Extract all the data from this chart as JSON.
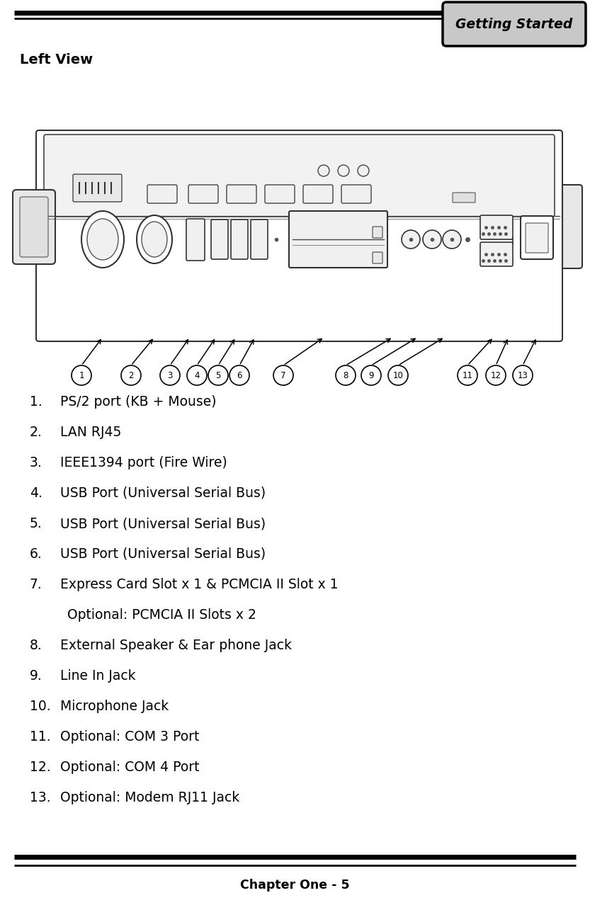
{
  "title_tab": "Getting Started",
  "section_title": "Left View",
  "footer": "Chapter One - 5",
  "bg_color": "#ffffff",
  "items": [
    {
      "num": "1.",
      "text": "PS/2 port (KB + Mouse)",
      "indent": false
    },
    {
      "num": "2.",
      "text": "LAN RJ45",
      "indent": false
    },
    {
      "num": "3.",
      "text": "IEEE1394 port (Fire Wire)",
      "indent": false
    },
    {
      "num": "4.",
      "text": "USB Port (Universal Serial Bus)",
      "indent": false
    },
    {
      "num": "5.",
      "text": "USB Port (Universal Serial Bus)",
      "indent": false
    },
    {
      "num": "6.",
      "text": "USB Port (Universal Serial Bus)",
      "indent": false
    },
    {
      "num": "7.",
      "text": "Express Card Slot x 1 & PCMCIA II Slot x 1",
      "indent": false
    },
    {
      "num": "",
      "text": "Optional: PCMCIA II Slots x 2",
      "indent": true
    },
    {
      "num": "8.",
      "text": "External Speaker & Ear phone Jack",
      "indent": false
    },
    {
      "num": "9.",
      "text": "Line In Jack",
      "indent": false
    },
    {
      "num": "10.",
      "text": "Microphone Jack",
      "indent": false
    },
    {
      "num": "11.",
      "text": "Optional: COM 3 Port",
      "indent": false
    },
    {
      "num": "12.",
      "text": "Optional: COM 4 Port",
      "indent": false
    },
    {
      "num": "13.",
      "text": "Optional: Modem RJ11 Jack",
      "indent": false
    }
  ]
}
